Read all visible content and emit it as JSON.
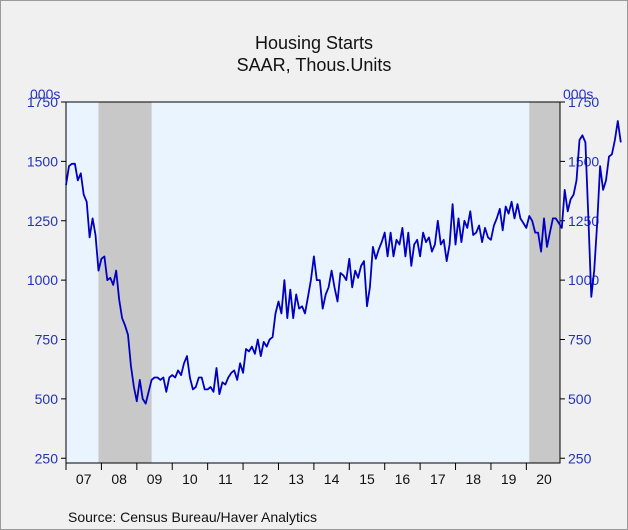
{
  "chart_data": {
    "type": "line",
    "title": "Housing Starts",
    "subtitle": "SAAR, Thous.Units",
    "ylabel_left": "000s",
    "ylabel_right": "000s",
    "source": "Source:  Census Bureau/Haver Analytics",
    "ylim": [
      230,
      1750
    ],
    "yticks": [
      250,
      500,
      750,
      1000,
      1250,
      1500,
      1750
    ],
    "xlim": [
      2007.0,
      2020.95
    ],
    "xtick_labels": [
      "07",
      "08",
      "09",
      "10",
      "11",
      "12",
      "13",
      "14",
      "15",
      "16",
      "17",
      "18",
      "19",
      "20"
    ],
    "recessions": [
      [
        2007.917,
        2009.417
      ],
      [
        2020.083,
        2020.95
      ]
    ],
    "colors": {
      "line": "#0000c0",
      "plot_bg": "#eaf4ff",
      "recession": "#c8c8c8",
      "axis_text": "#2233bb"
    },
    "x_start": 2007.0,
    "x_step": 0.08333,
    "series": [
      {
        "values": [
          1400,
          1480,
          1490,
          1490,
          1420,
          1450,
          1360,
          1330,
          1180,
          1260,
          1190,
          1040,
          1090,
          1100,
          1000,
          1010,
          980,
          1040,
          920,
          840,
          810,
          770,
          640,
          550,
          490,
          580,
          500,
          480,
          530,
          580,
          590,
          590,
          580,
          590,
          530,
          590,
          600,
          590,
          620,
          600,
          650,
          680,
          590,
          540,
          550,
          590,
          590,
          540,
          540,
          550,
          530,
          630,
          520,
          570,
          560,
          590,
          610,
          620,
          580,
          650,
          610,
          710,
          700,
          720,
          690,
          750,
          680,
          740,
          720,
          750,
          760,
          860,
          910,
          860,
          1000,
          840,
          960,
          840,
          940,
          880,
          890,
          860,
          930,
          1000,
          1100,
          1000,
          1000,
          880,
          940,
          970,
          1040,
          970,
          910,
          1030,
          1020,
          1000,
          1090,
          970,
          1040,
          1010,
          1060,
          1080,
          890,
          970,
          1140,
          1090,
          1130,
          1160,
          1200,
          1100,
          1200,
          1100,
          1170,
          1150,
          1220,
          1100,
          1200,
          1060,
          1150,
          1170,
          1100,
          1200,
          1160,
          1180,
          1120,
          1150,
          1250,
          1150,
          1170,
          1080,
          1150,
          1320,
          1150,
          1260,
          1160,
          1250,
          1220,
          1290,
          1190,
          1200,
          1230,
          1160,
          1220,
          1180,
          1170,
          1230,
          1260,
          1300,
          1210,
          1310,
          1280,
          1330,
          1260,
          1320,
          1260,
          1240,
          1220,
          1270,
          1250,
          1200,
          1200,
          1120,
          1260,
          1140,
          1200,
          1260,
          1260,
          1240,
          1220,
          1380,
          1290,
          1340,
          1360,
          1420,
          1590,
          1610,
          1580,
          1270,
          930,
          1040,
          1240,
          1480,
          1380,
          1420,
          1520,
          1530,
          1590,
          1670,
          1580
        ]
      }
    ]
  }
}
